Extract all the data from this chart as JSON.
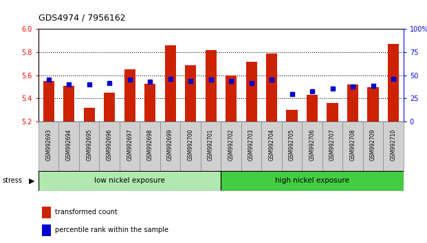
{
  "title": "GDS4974 / 7956162",
  "categories": [
    "GSM992693",
    "GSM992694",
    "GSM992695",
    "GSM992696",
    "GSM992697",
    "GSM992698",
    "GSM992699",
    "GSM992700",
    "GSM992701",
    "GSM992702",
    "GSM992703",
    "GSM992704",
    "GSM992705",
    "GSM992706",
    "GSM992707",
    "GSM992708",
    "GSM992709",
    "GSM992710"
  ],
  "bar_values": [
    5.55,
    5.51,
    5.32,
    5.45,
    5.65,
    5.53,
    5.86,
    5.69,
    5.82,
    5.6,
    5.72,
    5.79,
    5.3,
    5.43,
    5.36,
    5.52,
    5.5,
    5.87
  ],
  "percentile_values": [
    45,
    40,
    40,
    42,
    45,
    43,
    46,
    44,
    45,
    44,
    42,
    45,
    30,
    33,
    36,
    38,
    39,
    46
  ],
  "y_min": 5.2,
  "y_max": 6.0,
  "y_ticks": [
    5.2,
    5.4,
    5.6,
    5.8,
    6.0
  ],
  "right_y_ticks": [
    0,
    25,
    50,
    75,
    100
  ],
  "bar_color": "#cc2200",
  "dot_color": "#0000cc",
  "background_color": "#ffffff",
  "group1_label": "low nickel exposure",
  "group2_label": "high nickel exposure",
  "group1_color": "#b0e8b0",
  "group2_color": "#44cc44",
  "group1_count": 9,
  "stress_label": "stress",
  "legend1": "transformed count",
  "legend2": "percentile rank within the sample",
  "grid_yticks": [
    5.4,
    5.6,
    5.8
  ]
}
